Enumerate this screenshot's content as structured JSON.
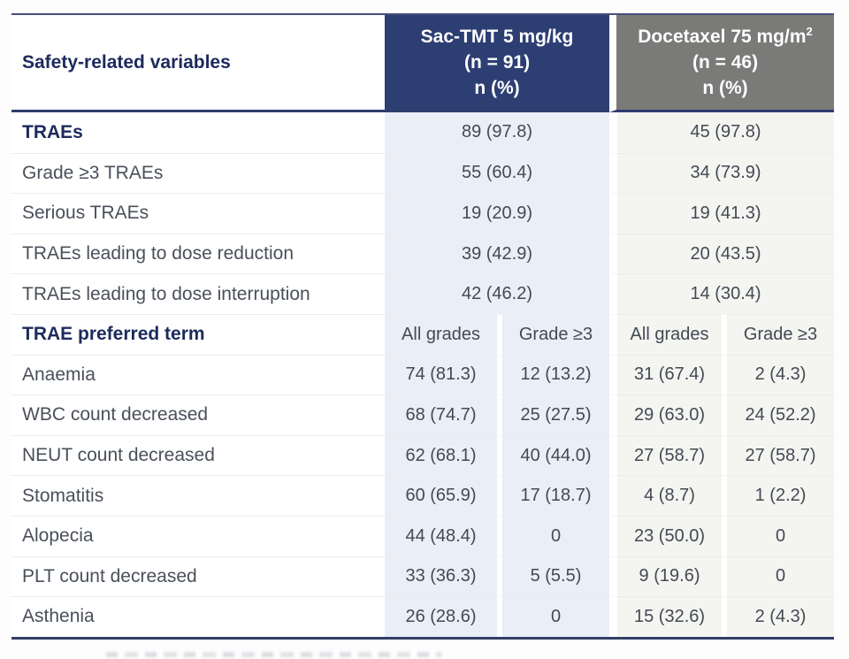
{
  "colors": {
    "header_blue": "#2d3e73",
    "header_gray": "#7a7a78",
    "column_light_blue": "#e9eef7",
    "column_light_gray": "#f4f4f1",
    "border_navy": "#2f3d6e",
    "label_navy_bold": "#1c2a5c",
    "body_text_gray": "#434a54"
  },
  "table": {
    "header": {
      "col1": "Safety-related variables",
      "sac": {
        "line1": "Sac-TMT 5 mg/kg",
        "line2": "(n = 91)",
        "line3": "n (%)"
      },
      "doc": {
        "line1_main": "Docetaxel 75 mg/m",
        "line1_sup": "2",
        "line2": "(n = 46)",
        "line3": "n (%)"
      }
    },
    "summary_rows": [
      {
        "label": "TRAEs",
        "bold": true,
        "sac": "89 (97.8)",
        "doc": "45 (97.8)"
      },
      {
        "label": "Grade ≥3 TRAEs",
        "bold": false,
        "sac": "55 (60.4)",
        "doc": "34 (73.9)"
      },
      {
        "label": "Serious TRAEs",
        "bold": false,
        "sac": "19 (20.9)",
        "doc": "19 (41.3)"
      },
      {
        "label": "TRAEs leading to dose reduction",
        "bold": false,
        "sac": "39 (42.9)",
        "doc": "20 (43.5)"
      },
      {
        "label": "TRAEs leading to dose interruption",
        "bold": false,
        "sac": "42 (46.2)",
        "doc": "14 (30.4)"
      }
    ],
    "subheader_row": {
      "label": "TRAE preferred term",
      "cols": [
        "All grades",
        "Grade ≥3",
        "All grades",
        "Grade ≥3"
      ]
    },
    "preferred_term_rows": [
      {
        "label": "Anaemia",
        "values": [
          "74 (81.3)",
          "12 (13.2)",
          "31 (67.4)",
          "2 (4.3)"
        ]
      },
      {
        "label": "WBC count decreased",
        "values": [
          "68 (74.7)",
          "25 (27.5)",
          "29 (63.0)",
          "24 (52.2)"
        ]
      },
      {
        "label": "NEUT count decreased",
        "values": [
          "62 (68.1)",
          "40 (44.0)",
          "27 (58.7)",
          "27 (58.7)"
        ]
      },
      {
        "label": "Stomatitis",
        "values": [
          "60 (65.9)",
          "17 (18.7)",
          "4 (8.7)",
          "1 (2.2)"
        ]
      },
      {
        "label": "Alopecia",
        "values": [
          "44 (48.4)",
          "0",
          "23 (50.0)",
          "0"
        ]
      },
      {
        "label": "PLT count decreased",
        "values": [
          "33 (36.3)",
          "5 (5.5)",
          "9 (19.6)",
          "0"
        ]
      },
      {
        "label": "Asthenia",
        "values": [
          "26 (28.6)",
          "0",
          "15 (32.6)",
          "2 (4.3)"
        ]
      }
    ]
  }
}
